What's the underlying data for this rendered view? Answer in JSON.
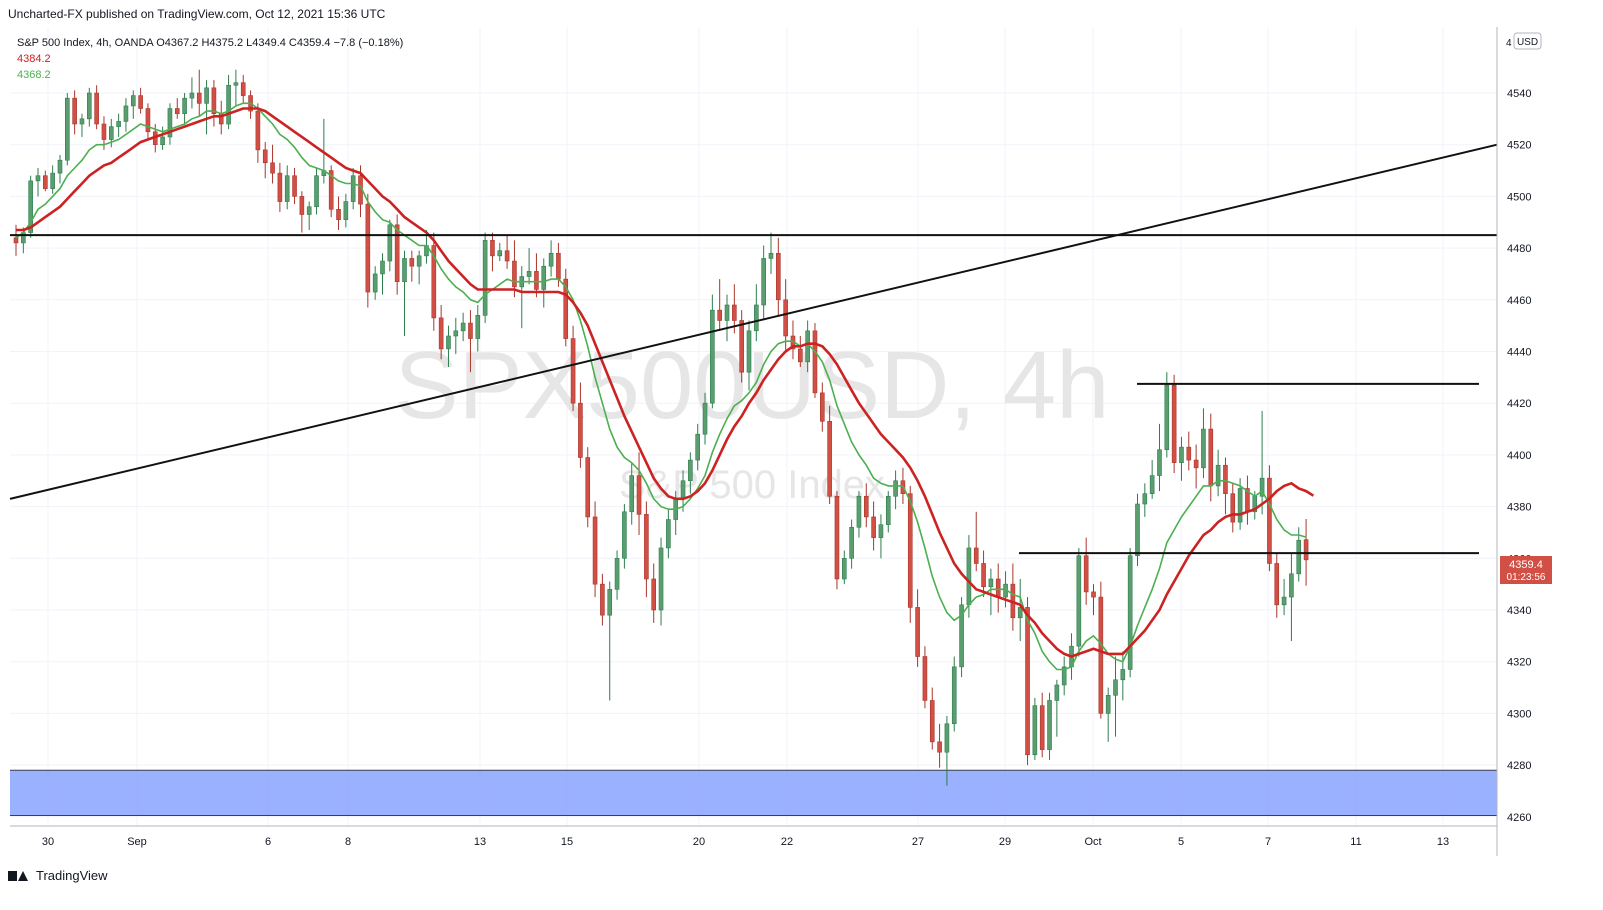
{
  "header": {
    "published_text": "Uncharted-FX published on TradingView.com, Oct 12, 2021 15:36 UTC"
  },
  "footer": {
    "brand": "TradingView"
  },
  "colors": {
    "up": "#26a69a",
    "up_fill": "#5a9e6f",
    "down": "#d24f45",
    "ma_fast": "#4caf50",
    "ma_slow": "#cc2222",
    "zone": "#8fa8ff",
    "price_tag": "#d24f45"
  },
  "chart_data": {
    "type": "candlestick",
    "symbol_line": "S&P 500 Index, 4h, OANDA  O4367.2  H4375.2  L4349.4  C4359.4  −7.8 (−0.18%)",
    "legend_ma_slow": "4384.2",
    "legend_ma_fast": "4368.2",
    "watermark": "SPX500USD, 4h",
    "watermark_sub": "S&P 500 Index",
    "currency_label": "USD",
    "y_ticks": [
      4540,
      4520,
      4500,
      4480,
      4460,
      4440,
      4420,
      4400,
      4380,
      4360,
      4340,
      4320,
      4300,
      4280,
      4260
    ],
    "y_axis_top_label": "4",
    "ylim": [
      4255,
      4558
    ],
    "x_ticks": [
      "30",
      "Sep",
      "6",
      "8",
      "13",
      "15",
      "20",
      "22",
      "27",
      "29",
      "Oct",
      "5",
      "7",
      "11",
      "13"
    ],
    "last_price": "4359.4",
    "countdown": "01:23:56",
    "candles": [
      [
        4484,
        4489,
        4477,
        4482
      ],
      [
        4482,
        4488,
        4478,
        4486
      ],
      [
        4486,
        4508,
        4484,
        4506
      ],
      [
        4506,
        4511,
        4500,
        4508
      ],
      [
        4508,
        4510,
        4502,
        4503
      ],
      [
        4503,
        4512,
        4501,
        4509
      ],
      [
        4509,
        4516,
        4505,
        4514
      ],
      [
        4514,
        4540,
        4512,
        4538
      ],
      [
        4538,
        4541,
        4524,
        4528
      ],
      [
        4528,
        4532,
        4523,
        4530
      ],
      [
        4530,
        4542,
        4527,
        4540
      ],
      [
        4540,
        4543,
        4526,
        4528
      ],
      [
        4528,
        4531,
        4518,
        4522
      ],
      [
        4522,
        4530,
        4519,
        4527
      ],
      [
        4527,
        4532,
        4523,
        4529
      ],
      [
        4529,
        4538,
        4525,
        4535
      ],
      [
        4535,
        4541,
        4530,
        4539
      ],
      [
        4539,
        4542,
        4532,
        4534
      ],
      [
        4534,
        4536,
        4522,
        4525
      ],
      [
        4525,
        4528,
        4517,
        4520
      ],
      [
        4520,
        4527,
        4518,
        4523
      ],
      [
        4523,
        4536,
        4520,
        4534
      ],
      [
        4534,
        4538,
        4530,
        4532
      ],
      [
        4532,
        4540,
        4528,
        4538
      ],
      [
        4538,
        4546,
        4534,
        4540
      ],
      [
        4540,
        4549,
        4531,
        4536
      ],
      [
        4536,
        4545,
        4524,
        4542
      ],
      [
        4542,
        4545,
        4527,
        4532
      ],
      [
        4532,
        4537,
        4524,
        4528
      ],
      [
        4528,
        4547,
        4526,
        4543
      ],
      [
        4543,
        4549,
        4535,
        4544
      ],
      [
        4544,
        4547,
        4536,
        4539
      ],
      [
        4539,
        4541,
        4530,
        4533
      ],
      [
        4533,
        4536,
        4513,
        4518
      ],
      [
        4518,
        4521,
        4507,
        4513
      ],
      [
        4513,
        4520,
        4505,
        4509
      ],
      [
        4509,
        4513,
        4494,
        4498
      ],
      [
        4498,
        4512,
        4495,
        4508
      ],
      [
        4508,
        4511,
        4497,
        4500
      ],
      [
        4500,
        4502,
        4486,
        4493
      ],
      [
        4493,
        4498,
        4487,
        4496
      ],
      [
        4496,
        4511,
        4493,
        4508
      ],
      [
        4508,
        4530,
        4505,
        4510
      ],
      [
        4510,
        4512,
        4492,
        4495
      ],
      [
        4495,
        4500,
        4487,
        4491
      ],
      [
        4491,
        4501,
        4488,
        4498
      ],
      [
        4498,
        4511,
        4495,
        4508
      ],
      [
        4508,
        4512,
        4492,
        4497
      ],
      [
        4497,
        4501,
        4457,
        4463
      ],
      [
        4463,
        4473,
        4460,
        4470
      ],
      [
        4470,
        4478,
        4462,
        4475
      ],
      [
        4475,
        4491,
        4471,
        4489
      ],
      [
        4489,
        4493,
        4462,
        4467
      ],
      [
        4467,
        4479,
        4446,
        4476
      ],
      [
        4476,
        4479,
        4467,
        4473
      ],
      [
        4473,
        4479,
        4466,
        4477
      ],
      [
        4477,
        4487,
        4474,
        4481
      ],
      [
        4481,
        4486,
        4448,
        4453
      ],
      [
        4453,
        4458,
        4437,
        4441
      ],
      [
        4441,
        4450,
        4434,
        4446
      ],
      [
        4446,
        4453,
        4439,
        4448
      ],
      [
        4448,
        4455,
        4444,
        4451
      ],
      [
        4451,
        4456,
        4432,
        4445
      ],
      [
        4445,
        4458,
        4440,
        4454
      ],
      [
        4454,
        4486,
        4451,
        4483
      ],
      [
        4483,
        4486,
        4471,
        4477
      ],
      [
        4477,
        4482,
        4475,
        4479
      ],
      [
        4479,
        4485,
        4472,
        4475
      ],
      [
        4475,
        4483,
        4461,
        4465
      ],
      [
        4465,
        4473,
        4449,
        4469
      ],
      [
        4469,
        4480,
        4466,
        4471
      ],
      [
        4471,
        4478,
        4461,
        4464
      ],
      [
        4464,
        4476,
        4457,
        4473
      ],
      [
        4473,
        4483,
        4469,
        4478
      ],
      [
        4478,
        4482,
        4465,
        4468
      ],
      [
        4468,
        4472,
        4442,
        4445
      ],
      [
        4445,
        4450,
        4417,
        4420
      ],
      [
        4420,
        4428,
        4395,
        4399
      ],
      [
        4399,
        4403,
        4372,
        4376
      ],
      [
        4376,
        4382,
        4345,
        4350
      ],
      [
        4350,
        4354,
        4334,
        4338
      ],
      [
        4338,
        4351,
        4305,
        4348
      ],
      [
        4348,
        4363,
        4344,
        4360
      ],
      [
        4360,
        4381,
        4356,
        4378
      ],
      [
        4378,
        4397,
        4373,
        4392
      ],
      [
        4392,
        4401,
        4369,
        4377
      ],
      [
        4377,
        4382,
        4345,
        4352
      ],
      [
        4352,
        4358,
        4335,
        4340
      ],
      [
        4340,
        4368,
        4334,
        4364
      ],
      [
        4364,
        4379,
        4360,
        4375
      ],
      [
        4375,
        4386,
        4369,
        4383
      ],
      [
        4383,
        4394,
        4378,
        4390
      ],
      [
        4390,
        4401,
        4385,
        4398
      ],
      [
        4398,
        4412,
        4394,
        4408
      ],
      [
        4408,
        4424,
        4404,
        4420
      ],
      [
        4420,
        4462,
        4418,
        4456
      ],
      [
        4456,
        4468,
        4448,
        4452
      ],
      [
        4452,
        4462,
        4444,
        4458
      ],
      [
        4458,
        4466,
        4447,
        4452
      ],
      [
        4452,
        4456,
        4428,
        4432
      ],
      [
        4432,
        4452,
        4425,
        4448
      ],
      [
        4448,
        4466,
        4444,
        4458
      ],
      [
        4458,
        4481,
        4452,
        4476
      ],
      [
        4476,
        4486,
        4470,
        4478
      ],
      [
        4478,
        4484,
        4454,
        4460
      ],
      [
        4460,
        4468,
        4440,
        4446
      ],
      [
        4446,
        4452,
        4437,
        4441
      ],
      [
        4441,
        4446,
        4434,
        4436
      ],
      [
        4436,
        4452,
        4432,
        4448
      ],
      [
        4448,
        4451,
        4422,
        4424
      ],
      [
        4424,
        4428,
        4409,
        4413
      ],
      [
        4413,
        4419,
        4381,
        4384
      ],
      [
        4384,
        4386,
        4348,
        4352
      ],
      [
        4352,
        4363,
        4350,
        4360
      ],
      [
        4360,
        4375,
        4356,
        4372
      ],
      [
        4372,
        4386,
        4368,
        4384
      ],
      [
        4384,
        4389,
        4372,
        4376
      ],
      [
        4376,
        4382,
        4363,
        4368
      ],
      [
        4368,
        4377,
        4360,
        4373
      ],
      [
        4373,
        4386,
        4370,
        4384
      ],
      [
        4384,
        4394,
        4379,
        4390
      ],
      [
        4390,
        4395,
        4381,
        4385
      ],
      [
        4385,
        4388,
        4335,
        4341
      ],
      [
        4341,
        4348,
        4318,
        4322
      ],
      [
        4322,
        4326,
        4302,
        4305
      ],
      [
        4305,
        4310,
        4286,
        4289
      ],
      [
        4289,
        4296,
        4279,
        4285
      ],
      [
        4285,
        4299,
        4272,
        4296
      ],
      [
        4296,
        4322,
        4293,
        4318
      ],
      [
        4318,
        4345,
        4314,
        4342
      ],
      [
        4342,
        4369,
        4337,
        4364
      ],
      [
        4364,
        4378,
        4355,
        4358
      ],
      [
        4358,
        4363,
        4345,
        4349
      ],
      [
        4349,
        4356,
        4338,
        4352
      ],
      [
        4352,
        4358,
        4339,
        4345
      ],
      [
        4345,
        4355,
        4341,
        4350
      ],
      [
        4350,
        4358,
        4332,
        4337
      ],
      [
        4337,
        4352,
        4328,
        4341
      ],
      [
        4341,
        4345,
        4280,
        4284
      ],
      [
        4284,
        4306,
        4282,
        4303
      ],
      [
        4303,
        4308,
        4283,
        4286
      ],
      [
        4286,
        4308,
        4282,
        4305
      ],
      [
        4305,
        4313,
        4291,
        4311
      ],
      [
        4311,
        4322,
        4307,
        4318
      ],
      [
        4318,
        4331,
        4313,
        4326
      ],
      [
        4326,
        4364,
        4322,
        4361
      ],
      [
        4361,
        4368,
        4342,
        4347
      ],
      [
        4347,
        4350,
        4338,
        4345
      ],
      [
        4345,
        4351,
        4298,
        4300
      ],
      [
        4300,
        4310,
        4289,
        4307
      ],
      [
        4307,
        4322,
        4291,
        4313
      ],
      [
        4313,
        4324,
        4305,
        4317
      ],
      [
        4317,
        4364,
        4314,
        4361
      ],
      [
        4361,
        4385,
        4357,
        4381
      ],
      [
        4381,
        4389,
        4376,
        4385
      ],
      [
        4385,
        4398,
        4383,
        4392
      ],
      [
        4392,
        4412,
        4386,
        4402
      ],
      [
        4402,
        4432,
        4399,
        4427
      ],
      [
        4427,
        4431,
        4393,
        4397
      ],
      [
        4397,
        4407,
        4390,
        4403
      ],
      [
        4403,
        4409,
        4394,
        4398
      ],
      [
        4398,
        4404,
        4387,
        4395
      ],
      [
        4395,
        4418,
        4391,
        4410
      ],
      [
        4410,
        4416,
        4382,
        4388
      ],
      [
        4388,
        4402,
        4384,
        4396
      ],
      [
        4396,
        4399,
        4377,
        4385
      ],
      [
        4385,
        4389,
        4370,
        4374
      ],
      [
        4374,
        4391,
        4371,
        4387
      ],
      [
        4387,
        4392,
        4373,
        4378
      ],
      [
        4378,
        4386,
        4375,
        4384
      ],
      [
        4384,
        4417,
        4377,
        4391
      ],
      [
        4391,
        4396,
        4355,
        4358
      ],
      [
        4358,
        4362,
        4337,
        4342
      ],
      [
        4342,
        4352,
        4338,
        4345
      ],
      [
        4345,
        4362,
        4328,
        4354
      ],
      [
        4354,
        4372,
        4351,
        4367
      ],
      [
        4367.2,
        4375.2,
        4349.4,
        4359.4
      ]
    ],
    "ma_fast": [
      4484,
      4486,
      4490,
      4495,
      4497,
      4500,
      4503,
      4508,
      4511,
      4514,
      4518,
      4520,
      4520,
      4521,
      4522,
      4524,
      4526,
      4528,
      4527,
      4526,
      4525,
      4526,
      4527,
      4528,
      4530,
      4531,
      4533,
      4533,
      4532,
      4533,
      4535,
      4536,
      4536,
      4534,
      4531,
      4528,
      4524,
      4522,
      4519,
      4515,
      4512,
      4511,
      4510,
      4508,
      4506,
      4505,
      4505,
      4504,
      4498,
      4494,
      4491,
      4490,
      4487,
      4485,
      4483,
      4481,
      4481,
      4477,
      4472,
      4468,
      4465,
      4463,
      4460,
      4459,
      4462,
      4464,
      4466,
      4468,
      4467,
      4467,
      4467,
      4467,
      4467,
      4468,
      4468,
      4465,
      4460,
      4452,
      4442,
      4430,
      4420,
      4410,
      4403,
      4399,
      4397,
      4394,
      4389,
      4383,
      4380,
      4379,
      4379,
      4380,
      4383,
      4387,
      4392,
      4401,
      4408,
      4414,
      4419,
      4421,
      4424,
      4428,
      4435,
      4440,
      4443,
      4444,
      4444,
      4442,
      4443,
      4440,
      4436,
      4429,
      4419,
      4412,
      4405,
      4400,
      4396,
      4391,
      4389,
      4388,
      4388,
      4388,
      4382,
      4374,
      4364,
      4353,
      4345,
      4339,
      4336,
      4338,
      4342,
      4345,
      4346,
      4348,
      4348,
      4348,
      4346,
      4345,
      4336,
      4331,
      4324,
      4320,
      4317,
      4317,
      4318,
      4324,
      4328,
      4330,
      4327,
      4323,
      4321,
      4320,
      4326,
      4334,
      4341,
      4348,
      4356,
      4366,
      4371,
      4376,
      4380,
      4384,
      4388,
      4388,
      4390,
      4390,
      4389,
      4388,
      4386,
      4384,
      4386,
      4381,
      4375,
      4371,
      4369,
      4369,
      4368.2
    ],
    "ma_slow": [
      4487,
      4487,
      4488,
      4490,
      4492,
      4494,
      4496,
      4499,
      4502,
      4505,
      4508,
      4510,
      4512,
      4513,
      4515,
      4517,
      4519,
      4521,
      4522,
      4523,
      4524,
      4525,
      4526,
      4527,
      4528,
      4529,
      4530,
      4531,
      4531,
      4532,
      4533,
      4534,
      4534,
      4534,
      4533,
      4531,
      4529,
      4527,
      4525,
      4523,
      4521,
      4519,
      4517,
      4515,
      4513,
      4511,
      4510,
      4509,
      4506,
      4503,
      4500,
      4498,
      4495,
      4492,
      4490,
      4488,
      4486,
      4483,
      4479,
      4475,
      4472,
      4469,
      4466,
      4464,
      4464,
      4464,
      4464,
      4464,
      4464,
      4463,
      4463,
      4463,
      4463,
      4463,
      4463,
      4462,
      4459,
      4455,
      4450,
      4443,
      4436,
      4429,
      4422,
      4415,
      4409,
      4403,
      4397,
      4391,
      4387,
      4384,
      4383,
      4383,
      4384,
      4386,
      4389,
      4394,
      4400,
      4406,
      4411,
      4415,
      4420,
      4424,
      4429,
      4433,
      4437,
      4440,
      4442,
      4442,
      4443,
      4443,
      4442,
      4439,
      4435,
      4430,
      4425,
      4420,
      4416,
      4412,
      4408,
      4405,
      4402,
      4399,
      4395,
      4390,
      4384,
      4377,
      4370,
      4364,
      4358,
      4354,
      4351,
      4348,
      4347,
      4346,
      4345,
      4344,
      4343,
      4342,
      4338,
      4335,
      4331,
      4328,
      4325,
      4323,
      4322,
      4323,
      4324,
      4325,
      4324,
      4323,
      4323,
      4323,
      4326,
      4329,
      4332,
      4336,
      4340,
      4346,
      4351,
      4356,
      4361,
      4365,
      4369,
      4371,
      4374,
      4376,
      4377,
      4377,
      4378,
      4379,
      4381,
      4383,
      4386,
      4388,
      4389,
      4387,
      4386,
      4384.2
    ]
  }
}
